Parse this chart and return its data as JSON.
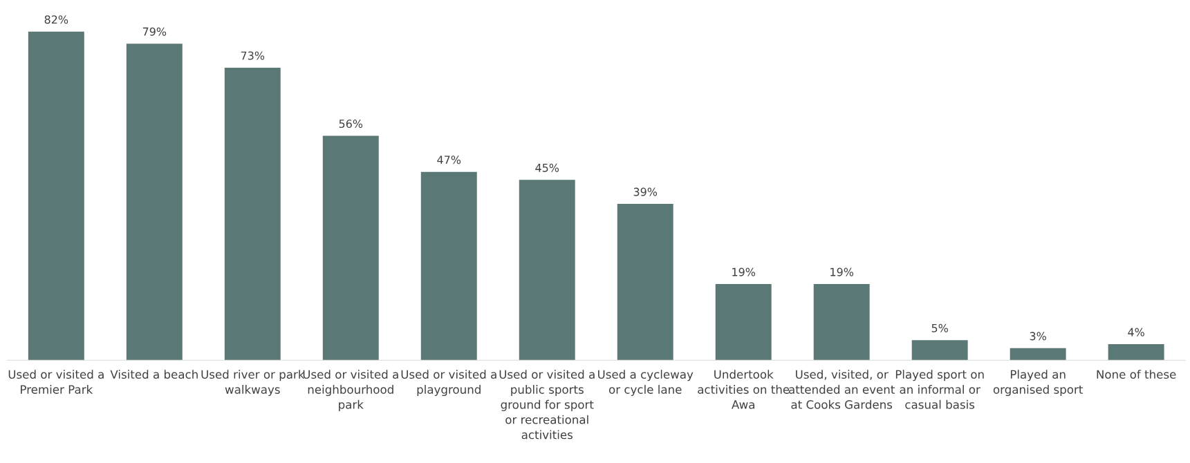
{
  "chart_data": {
    "type": "bar",
    "categories": [
      "Used or visited a\nPremier Park",
      "Visited a beach",
      "Used river or park\nwalkways",
      "Used or visited a\nneighbourhood\npark",
      "Used or visited a\nplayground",
      "Used or visited a\npublic sports\nground for sport\nor recreational\nactivities",
      "Used a cycleway\nor cycle lane",
      "Undertook\nactivities on the\nAwa",
      "Used, visited, or\nattended an event\nat Cooks Gardens",
      "Played sport on\nan informal or\ncasual basis",
      "Played an\norganised sport",
      "None of these"
    ],
    "values": [
      82,
      79,
      73,
      56,
      47,
      45,
      39,
      19,
      19,
      5,
      3,
      4
    ],
    "value_labels": [
      "82%",
      "79%",
      "73%",
      "56%",
      "47%",
      "45%",
      "39%",
      "19%",
      "19%",
      "5%",
      "3%",
      "4%"
    ],
    "color": "#5a7876",
    "grid": false,
    "legend": false
  }
}
